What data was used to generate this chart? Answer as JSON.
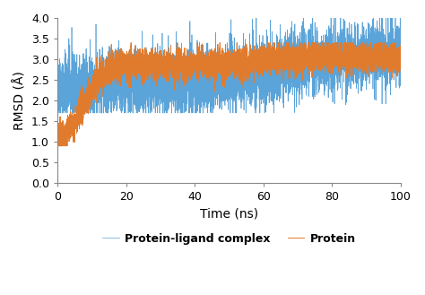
{
  "xlabel": "Time (ns)",
  "ylabel": "RMSD (Å)",
  "xlim": [
    0,
    100
  ],
  "ylim": [
    0,
    4
  ],
  "yticks": [
    0,
    0.5,
    1.0,
    1.5,
    2.0,
    2.5,
    3.0,
    3.5,
    4.0
  ],
  "xticks": [
    0,
    20,
    40,
    60,
    80,
    100
  ],
  "legend_labels": [
    "Protein-ligand complex",
    "Protein"
  ],
  "color_blue": "#5BA4D9",
  "color_orange": "#E07B2E",
  "seed": 42,
  "n_points": 5000,
  "time_end": 100,
  "xlabel_fontsize": 10,
  "ylabel_fontsize": 10,
  "tick_fontsize": 9,
  "legend_fontsize": 9,
  "linewidth_blue": 0.5,
  "linewidth_orange": 0.7
}
